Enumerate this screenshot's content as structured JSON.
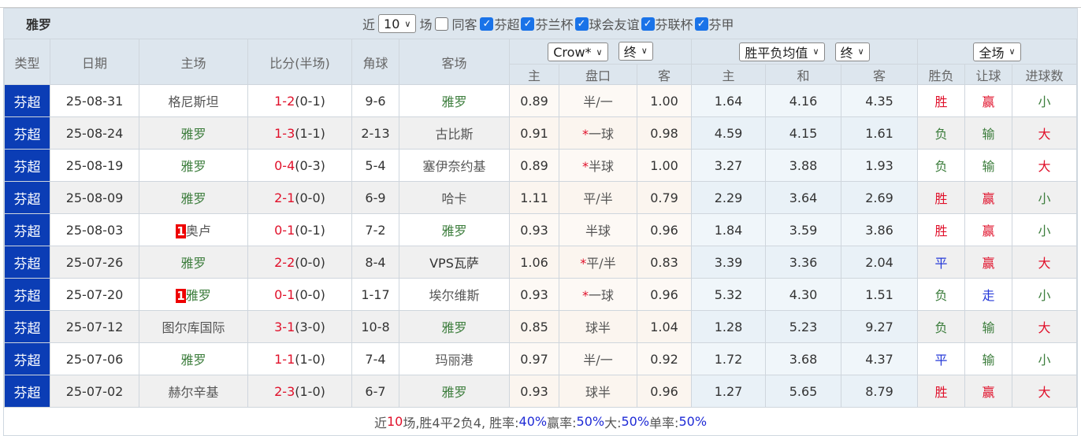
{
  "title": "雅罗",
  "filters": {
    "recent_label": "近",
    "recent_count": "10",
    "unit_label": "场",
    "same_away_label": "同客",
    "same_away_checked": false,
    "leagues": [
      {
        "label": "芬超",
        "checked": true
      },
      {
        "label": "芬兰杯",
        "checked": true
      },
      {
        "label": "球会友谊",
        "checked": true
      },
      {
        "label": "芬联杯",
        "checked": true
      },
      {
        "label": "芬甲",
        "checked": true
      }
    ]
  },
  "selects": {
    "company": "Crow*",
    "company_stage": "终",
    "odds_type": "胜平负均值",
    "odds_stage": "终",
    "period": "全场"
  },
  "headers": {
    "type": "类型",
    "date": "日期",
    "home": "主场",
    "score": "比分(半场)",
    "corners": "角球",
    "away": "客场",
    "ah_home": "主",
    "ah_line": "盘口",
    "ah_away": "客",
    "eu_home": "主",
    "eu_draw": "和",
    "eu_away": "客",
    "result": "胜负",
    "handicap": "让球",
    "goals": "进球数"
  },
  "colors": {
    "type_bg": "#0b3db5",
    "win": "#e0102a",
    "lose": "#3c7d3c",
    "draw": "#2438d8"
  },
  "rows": [
    {
      "type": "芬超",
      "date": "25-08-31",
      "home": "格尼斯坦",
      "home_badge": "",
      "home_is_team": false,
      "score": "1-2",
      "half": "(0-1)",
      "corners": "9-6",
      "away": "雅罗",
      "away_is_team": true,
      "ah_home": "0.89",
      "ah_star": "",
      "ah_line": "半/一",
      "ah_away": "1.00",
      "eu_home": "1.64",
      "eu_draw": "4.16",
      "eu_away": "4.35",
      "result": "胜",
      "handicap": "赢",
      "goals": "小"
    },
    {
      "type": "芬超",
      "date": "25-08-24",
      "home": "雅罗",
      "home_badge": "",
      "home_is_team": true,
      "score": "1-3",
      "half": "(1-1)",
      "corners": "2-13",
      "away": "古比斯",
      "away_is_team": false,
      "ah_home": "0.91",
      "ah_star": "*",
      "ah_line": "一球",
      "ah_away": "0.98",
      "eu_home": "4.59",
      "eu_draw": "4.15",
      "eu_away": "1.61",
      "result": "负",
      "handicap": "输",
      "goals": "大"
    },
    {
      "type": "芬超",
      "date": "25-08-19",
      "home": "雅罗",
      "home_badge": "",
      "home_is_team": true,
      "score": "0-4",
      "half": "(0-3)",
      "corners": "5-4",
      "away": "塞伊奈约基",
      "away_is_team": false,
      "ah_home": "0.89",
      "ah_star": "*",
      "ah_line": "半球",
      "ah_away": "1.00",
      "eu_home": "3.27",
      "eu_draw": "3.88",
      "eu_away": "1.93",
      "result": "负",
      "handicap": "输",
      "goals": "大"
    },
    {
      "type": "芬超",
      "date": "25-08-09",
      "home": "雅罗",
      "home_badge": "",
      "home_is_team": true,
      "score": "2-1",
      "half": "(0-0)",
      "corners": "6-9",
      "away": "哈卡",
      "away_is_team": false,
      "ah_home": "1.11",
      "ah_star": "",
      "ah_line": "平/半",
      "ah_away": "0.79",
      "eu_home": "2.29",
      "eu_draw": "3.64",
      "eu_away": "2.69",
      "result": "胜",
      "handicap": "赢",
      "goals": "小"
    },
    {
      "type": "芬超",
      "date": "25-08-03",
      "home": "奥卢",
      "home_badge": "1",
      "home_is_team": false,
      "score": "0-1",
      "half": "(0-1)",
      "corners": "7-2",
      "away": "雅罗",
      "away_is_team": true,
      "ah_home": "0.93",
      "ah_star": "",
      "ah_line": "半球",
      "ah_away": "0.96",
      "eu_home": "1.84",
      "eu_draw": "3.59",
      "eu_away": "3.86",
      "result": "胜",
      "handicap": "赢",
      "goals": "小"
    },
    {
      "type": "芬超",
      "date": "25-07-26",
      "home": "雅罗",
      "home_badge": "",
      "home_is_team": true,
      "score": "2-2",
      "half": "(0-0)",
      "corners": "8-4",
      "away": "VPS瓦萨",
      "away_is_team": false,
      "ah_home": "1.06",
      "ah_star": "*",
      "ah_line": "平/半",
      "ah_away": "0.83",
      "eu_home": "3.39",
      "eu_draw": "3.36",
      "eu_away": "2.04",
      "result": "平",
      "handicap": "赢",
      "goals": "大"
    },
    {
      "type": "芬超",
      "date": "25-07-20",
      "home": "雅罗",
      "home_badge": "1",
      "home_is_team": true,
      "score": "0-1",
      "half": "(0-0)",
      "corners": "1-17",
      "away": "埃尔维斯",
      "away_is_team": false,
      "ah_home": "0.93",
      "ah_star": "*",
      "ah_line": "一球",
      "ah_away": "0.96",
      "eu_home": "5.32",
      "eu_draw": "4.30",
      "eu_away": "1.51",
      "result": "负",
      "handicap": "走",
      "goals": "小"
    },
    {
      "type": "芬超",
      "date": "25-07-12",
      "home": "图尔库国际",
      "home_badge": "",
      "home_is_team": false,
      "score": "3-1",
      "half": "(3-0)",
      "corners": "10-8",
      "away": "雅罗",
      "away_is_team": true,
      "ah_home": "0.85",
      "ah_star": "",
      "ah_line": "球半",
      "ah_away": "1.04",
      "eu_home": "1.28",
      "eu_draw": "5.23",
      "eu_away": "9.27",
      "result": "负",
      "handicap": "输",
      "goals": "大"
    },
    {
      "type": "芬超",
      "date": "25-07-06",
      "home": "雅罗",
      "home_badge": "",
      "home_is_team": true,
      "score": "1-1",
      "half": "(1-0)",
      "corners": "7-4",
      "away": "玛丽港",
      "away_is_team": false,
      "ah_home": "0.97",
      "ah_star": "",
      "ah_line": "半/一",
      "ah_away": "0.92",
      "eu_home": "1.72",
      "eu_draw": "3.68",
      "eu_away": "4.37",
      "result": "平",
      "handicap": "输",
      "goals": "小"
    },
    {
      "type": "芬超",
      "date": "25-07-02",
      "home": "赫尔辛基",
      "home_badge": "",
      "home_is_team": false,
      "score": "2-3",
      "half": "(1-0)",
      "corners": "6-7",
      "away": "雅罗",
      "away_is_team": true,
      "ah_home": "0.93",
      "ah_star": "",
      "ah_line": "球半",
      "ah_away": "0.96",
      "eu_home": "1.27",
      "eu_draw": "5.65",
      "eu_away": "8.79",
      "result": "胜",
      "handicap": "赢",
      "goals": "大"
    }
  ],
  "summary": {
    "p1": "近",
    "count": "10",
    "p2": "场,胜4平2负4, 胜率:",
    "win_rate": "40%",
    "p3": " 赢率:",
    "cover_rate": "50%",
    "p4": " 大:",
    "over_rate": "50%",
    "p5": " 单率:",
    "odd_rate": "50%"
  }
}
